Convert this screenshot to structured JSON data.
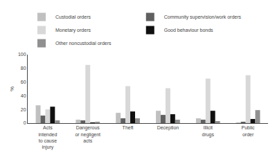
{
  "chart_data": {
    "type": "bar",
    "categories": [
      "Acts\nintended\nto cause\ninjury",
      "Dangerous\nor negligent\nacts",
      "Theft",
      "Deception",
      "Illicit\ndrugs",
      "Public\norder"
    ],
    "series": [
      {
        "name": "Custodial orders",
        "color": "#c0c0c0",
        "values": [
          26,
          5,
          15,
          18,
          7,
          1
        ]
      },
      {
        "name": "Community supervision/work orders",
        "color": "#606060",
        "values": [
          11,
          4,
          7,
          12,
          5,
          2
        ]
      },
      {
        "name": "Monetary orders",
        "color": "#d8d8d8",
        "values": [
          20,
          85,
          54,
          51,
          65,
          70
        ]
      },
      {
        "name": "Good behaviour bonds",
        "color": "#101010",
        "values": [
          24,
          1,
          17,
          13,
          18,
          6
        ]
      },
      {
        "name": "Other noncustodial orders",
        "color": "#909090",
        "values": [
          4,
          2,
          7,
          5,
          3,
          19
        ]
      }
    ],
    "ylabel": "%",
    "ylim": [
      0,
      100
    ],
    "yticks": [
      0,
      20,
      40,
      60,
      80,
      100
    ],
    "grid": false,
    "legend": "top"
  }
}
